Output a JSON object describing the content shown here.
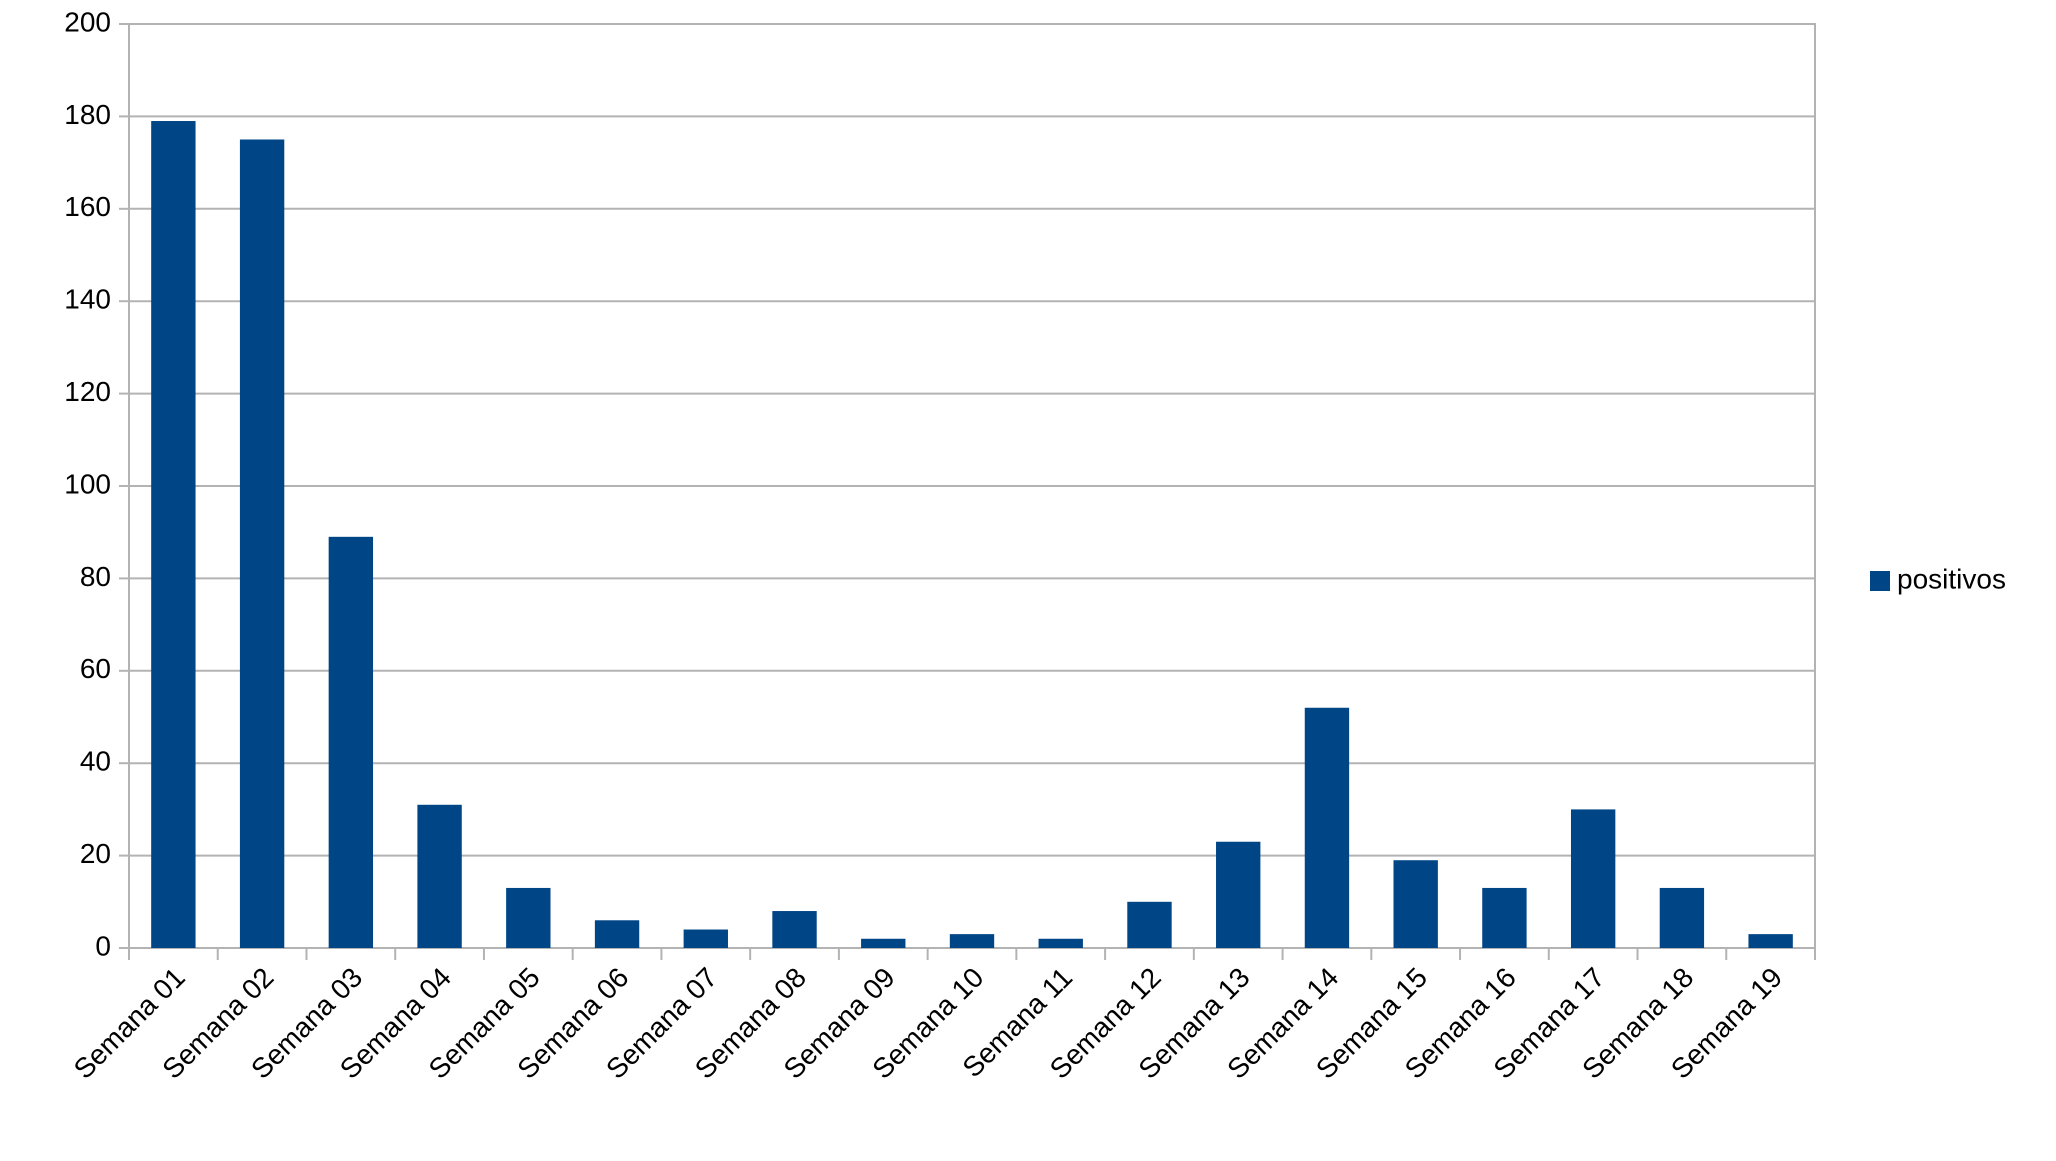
{
  "chart_data": {
    "type": "bar",
    "categories": [
      "Semana 01",
      "Semana 02",
      "Semana 03",
      "Semana 04",
      "Semana 05",
      "Semana 06",
      "Semana 07",
      "Semana 08",
      "Semana 09",
      "Semana 10",
      "Semana 11",
      "Semana 12",
      "Semana 13",
      "Semana 14",
      "Semana 15",
      "Semana 16",
      "Semana 17",
      "Semana 18",
      "Semana 19"
    ],
    "series": [
      {
        "name": "positivos",
        "color": "#004586",
        "values": [
          179,
          175,
          89,
          31,
          13,
          6,
          4,
          8,
          2,
          3,
          2,
          10,
          23,
          52,
          19,
          13,
          30,
          13,
          3
        ]
      }
    ],
    "ylim": [
      0,
      200
    ],
    "yticks": [
      0,
      20,
      40,
      60,
      80,
      100,
      120,
      140,
      160,
      180,
      200
    ],
    "grid": true,
    "legend": "right"
  }
}
